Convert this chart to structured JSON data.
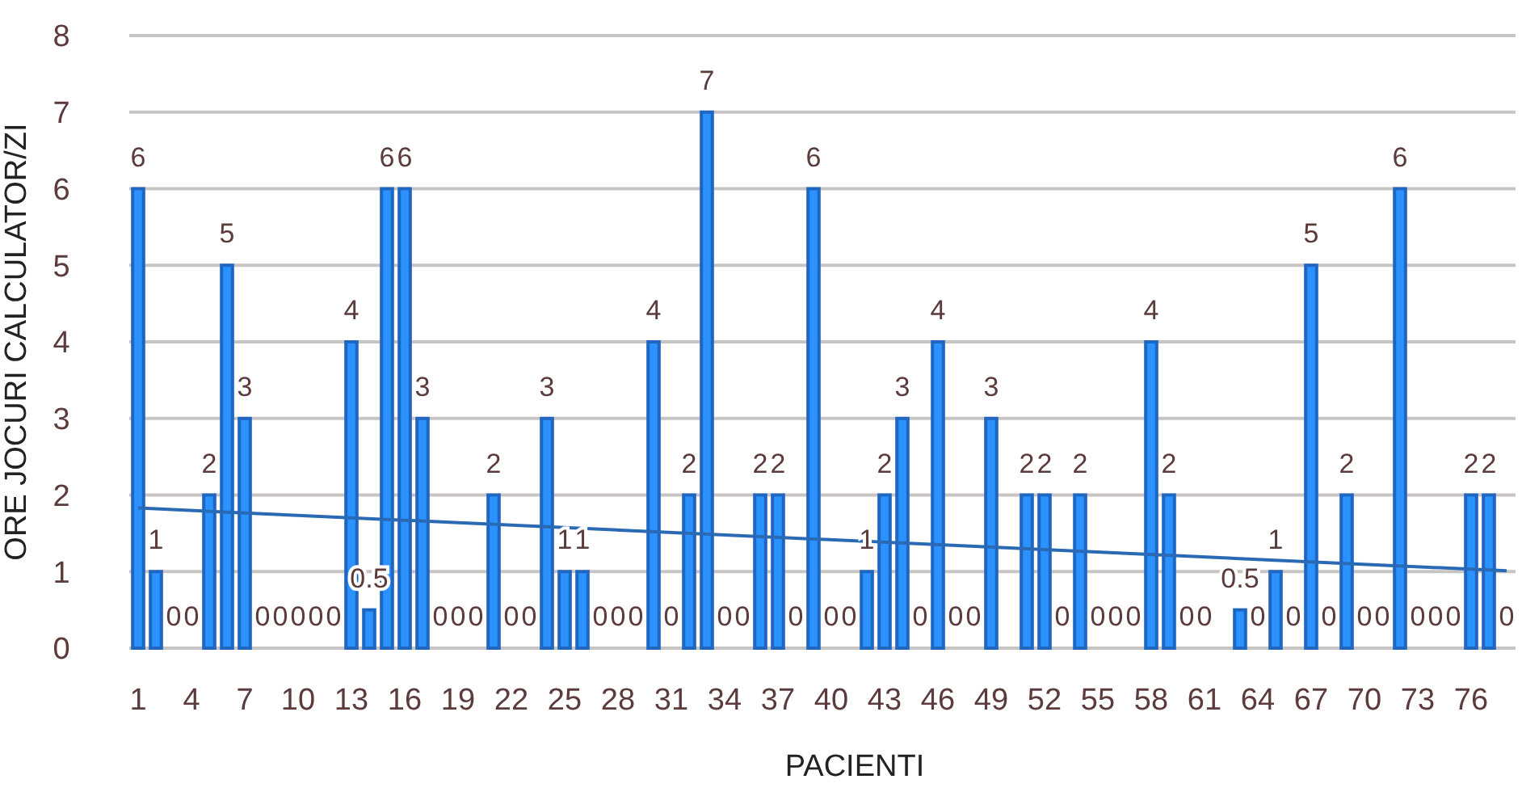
{
  "chart_data": {
    "type": "bar",
    "xlabel": "PACIENTI",
    "ylabel": "ORE JOCURI CALCULATOR/ZI",
    "x": [
      1,
      2,
      3,
      4,
      5,
      6,
      7,
      8,
      9,
      10,
      11,
      12,
      13,
      14,
      15,
      16,
      17,
      18,
      19,
      20,
      21,
      22,
      23,
      24,
      25,
      26,
      27,
      28,
      29,
      30,
      31,
      32,
      33,
      34,
      35,
      36,
      37,
      38,
      39,
      40,
      41,
      42,
      43,
      44,
      45,
      46,
      47,
      48,
      49,
      50,
      51,
      52,
      53,
      54,
      55,
      56,
      57,
      58,
      59,
      60,
      61,
      62,
      63,
      64,
      65,
      66,
      67,
      68,
      69,
      70,
      71,
      72,
      73,
      74,
      75,
      76,
      77,
      78
    ],
    "xlim": [
      0.5,
      78.5
    ],
    "xticks": [
      1,
      4,
      7,
      10,
      13,
      16,
      19,
      22,
      25,
      28,
      31,
      34,
      37,
      40,
      43,
      46,
      49,
      52,
      55,
      58,
      61,
      64,
      67,
      70,
      73,
      76
    ],
    "ylim": [
      0,
      8
    ],
    "yticks": [
      0,
      1,
      2,
      3,
      4,
      5,
      6,
      7,
      8
    ],
    "grid": "y",
    "series": [
      {
        "color": "#1f66c1",
        "values": [
          6,
          1,
          0,
          0,
          2,
          5,
          3,
          0,
          0,
          0,
          0,
          0,
          4,
          0.5,
          6,
          6,
          3,
          0,
          0,
          0,
          2,
          0,
          0,
          3,
          1,
          1,
          0,
          0,
          0,
          4,
          0,
          2,
          7,
          0,
          0,
          2,
          2,
          0,
          6,
          0,
          0,
          1,
          2,
          3,
          0,
          4,
          0,
          0,
          3,
          0,
          2,
          2,
          0,
          2,
          0,
          0,
          0,
          4,
          2,
          0,
          0,
          0,
          0.5,
          0,
          1,
          0,
          5,
          0,
          2,
          0,
          0,
          6,
          0,
          0,
          0,
          2,
          2,
          0
        ],
        "value_labels": [
          "6",
          "1",
          "0",
          "0",
          "2",
          "5",
          "3",
          "0",
          "0",
          "0",
          "0",
          "0",
          "4",
          "0.5",
          "6",
          "6",
          "3",
          "0",
          "0",
          "0",
          "2",
          "0",
          "0",
          "3",
          "1",
          "1",
          "0",
          "0",
          "0",
          "4",
          "0",
          "2",
          "7",
          "0",
          "0",
          "2",
          "2",
          "0",
          "6",
          "0",
          "0",
          "1",
          "2",
          "3",
          "0",
          "4",
          "0",
          "0",
          "3",
          null,
          "2",
          "2",
          "0",
          "2",
          "0",
          "0",
          "0",
          "4",
          "2",
          "0",
          "0",
          null,
          "0.5",
          "0",
          "1",
          "0",
          "5",
          "0",
          "2",
          "0",
          "0",
          "6",
          "0",
          "0",
          "0",
          "2",
          "2",
          "0"
        ]
      },
      {
        "type": "line",
        "color": "#2a6ab4",
        "x": [
          1,
          78
        ],
        "values": [
          1.83,
          1.01
        ]
      }
    ]
  }
}
